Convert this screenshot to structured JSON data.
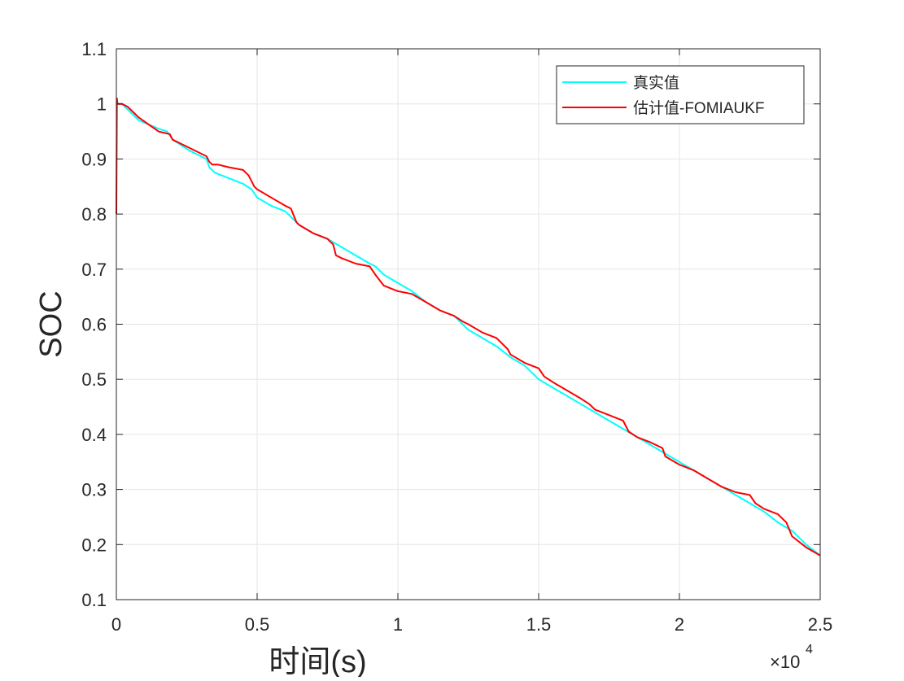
{
  "chart_data": {
    "type": "line",
    "xlabel": "时间(s)",
    "ylabel": "SOC",
    "x_exponent_label": "×10",
    "x_exponent_power": "4",
    "xlim": [
      0,
      25000
    ],
    "ylim": [
      0.1,
      1.1
    ],
    "x_ticks": [
      0,
      5000,
      10000,
      15000,
      20000,
      25000
    ],
    "x_tick_labels": [
      "0",
      "0.5",
      "1",
      "1.5",
      "2",
      "2.5"
    ],
    "y_ticks": [
      0.1,
      0.2,
      0.3,
      0.4,
      0.5,
      0.6,
      0.7,
      0.8,
      0.9,
      1.0,
      1.1
    ],
    "y_tick_labels": [
      "0.1",
      "0.2",
      "0.3",
      "0.4",
      "0.5",
      "0.6",
      "0.7",
      "0.8",
      "0.9",
      "1",
      "1.1"
    ],
    "grid": true,
    "legend_position": "top-right",
    "series": [
      {
        "name": "真实值",
        "color": "#00FFFF",
        "x": [
          0,
          200,
          800,
          1500,
          1800,
          2000,
          2600,
          3200,
          3300,
          3500,
          4000,
          4500,
          4800,
          5000,
          5500,
          6000,
          6300,
          6500,
          7000,
          7500,
          8000,
          8500,
          9000,
          9200,
          9500,
          10000,
          10500,
          11000,
          11500,
          12000,
          12300,
          12500,
          13000,
          13500,
          14000,
          14500,
          15000,
          15500,
          16000,
          16500,
          17000,
          17500,
          18000,
          18500,
          19000,
          19500,
          20000,
          20500,
          21000,
          21500,
          22000,
          22500,
          23000,
          23500,
          24000,
          24500,
          25000
        ],
        "y": [
          1.0,
          1.0,
          0.97,
          0.955,
          0.95,
          0.935,
          0.915,
          0.9,
          0.885,
          0.875,
          0.865,
          0.855,
          0.845,
          0.83,
          0.815,
          0.805,
          0.79,
          0.78,
          0.765,
          0.755,
          0.74,
          0.725,
          0.71,
          0.705,
          0.69,
          0.675,
          0.66,
          0.64,
          0.625,
          0.615,
          0.6,
          0.59,
          0.575,
          0.56,
          0.54,
          0.525,
          0.5,
          0.485,
          0.47,
          0.455,
          0.44,
          0.425,
          0.41,
          0.395,
          0.38,
          0.365,
          0.35,
          0.335,
          0.32,
          0.305,
          0.29,
          0.275,
          0.26,
          0.24,
          0.225,
          0.2,
          0.18
        ]
      },
      {
        "name": "估计值-FOMIAUKF",
        "color": "#FF0000",
        "x": [
          0,
          20,
          40,
          200,
          400,
          800,
          1500,
          1900,
          2000,
          2600,
          3200,
          3300,
          3400,
          3600,
          4000,
          4500,
          4700,
          4900,
          5000,
          5500,
          6000,
          6200,
          6400,
          6500,
          7000,
          7500,
          7700,
          7800,
          8000,
          8500,
          9000,
          9200,
          9500,
          10000,
          10500,
          11000,
          11500,
          12000,
          12300,
          12500,
          13000,
          13500,
          13700,
          13900,
          14000,
          14500,
          15000,
          15200,
          15500,
          16000,
          16500,
          16800,
          17000,
          17500,
          18000,
          18200,
          18500,
          19000,
          19400,
          19500,
          20000,
          20500,
          21000,
          21500,
          22000,
          22500,
          22700,
          23000,
          23500,
          23800,
          24000,
          24500,
          25000
        ],
        "y": [
          0.8,
          1.01,
          1.0,
          1.0,
          0.995,
          0.975,
          0.95,
          0.945,
          0.935,
          0.92,
          0.905,
          0.895,
          0.89,
          0.89,
          0.885,
          0.88,
          0.87,
          0.85,
          0.845,
          0.83,
          0.815,
          0.81,
          0.785,
          0.78,
          0.765,
          0.755,
          0.745,
          0.725,
          0.72,
          0.71,
          0.705,
          0.69,
          0.67,
          0.66,
          0.655,
          0.64,
          0.625,
          0.615,
          0.605,
          0.6,
          0.585,
          0.575,
          0.565,
          0.555,
          0.545,
          0.53,
          0.52,
          0.505,
          0.495,
          0.48,
          0.465,
          0.455,
          0.445,
          0.435,
          0.425,
          0.405,
          0.395,
          0.385,
          0.375,
          0.36,
          0.345,
          0.335,
          0.32,
          0.305,
          0.295,
          0.29,
          0.275,
          0.265,
          0.255,
          0.24,
          0.215,
          0.195,
          0.18
        ]
      }
    ]
  }
}
